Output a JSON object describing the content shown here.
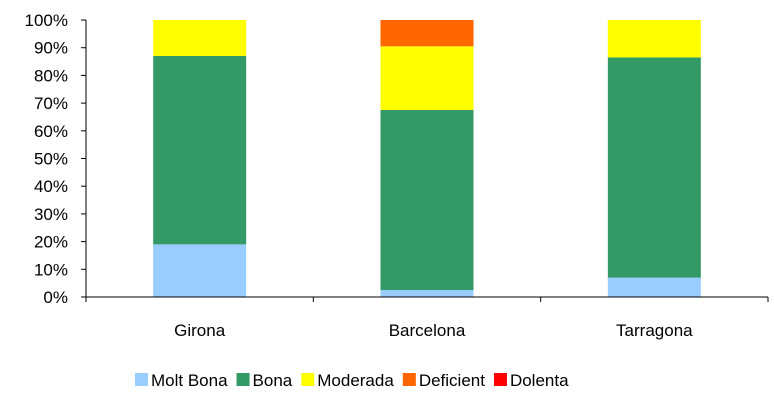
{
  "chart_data": {
    "type": "bar",
    "stacked": true,
    "categories": [
      "Girona",
      "Barcelona",
      "Tarragona"
    ],
    "series": [
      {
        "name": "Molt Bona",
        "color": "#99CCFF",
        "values": [
          19,
          2.5,
          7
        ]
      },
      {
        "name": "Bona",
        "color": "#339966",
        "values": [
          68,
          65,
          79.5
        ]
      },
      {
        "name": "Moderada",
        "color": "#FFFF00",
        "values": [
          13,
          23,
          13.5
        ]
      },
      {
        "name": "Deficient",
        "color": "#FF6600",
        "values": [
          0,
          9.5,
          0
        ]
      },
      {
        "name": "Dolenta",
        "color": "#FF0000",
        "values": [
          0,
          0,
          0
        ]
      }
    ],
    "y_ticks": [
      "0%",
      "10%",
      "20%",
      "30%",
      "40%",
      "50%",
      "60%",
      "70%",
      "80%",
      "90%",
      "100%"
    ],
    "ylim": [
      0,
      100
    ],
    "legend_position": "bottom",
    "grid": false
  }
}
